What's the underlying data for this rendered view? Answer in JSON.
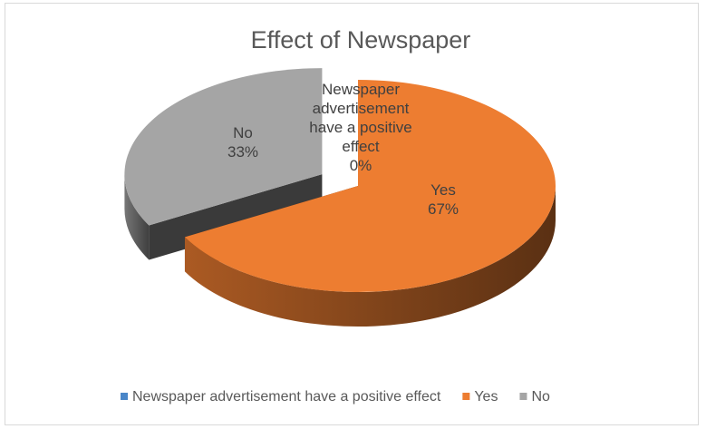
{
  "chart_data": {
    "type": "pie",
    "title": "Effect of Newspaper",
    "categories": [
      "Newspaper advertisement have a positive effect",
      "Yes",
      "No"
    ],
    "values": [
      0,
      67,
      33
    ],
    "colors": [
      "#4a86c8",
      "#ed7d31",
      "#a5a5a5"
    ],
    "data_labels": [
      {
        "name_lines": [
          "Newspaper",
          "advertisement",
          "have a positive",
          "effect"
        ],
        "pct": "0%"
      },
      {
        "name_lines": [
          "Yes"
        ],
        "pct": "67%"
      },
      {
        "name_lines": [
          "No"
        ],
        "pct": "33%"
      }
    ],
    "exploded": "No",
    "legend_position": "bottom",
    "three_d": true
  }
}
